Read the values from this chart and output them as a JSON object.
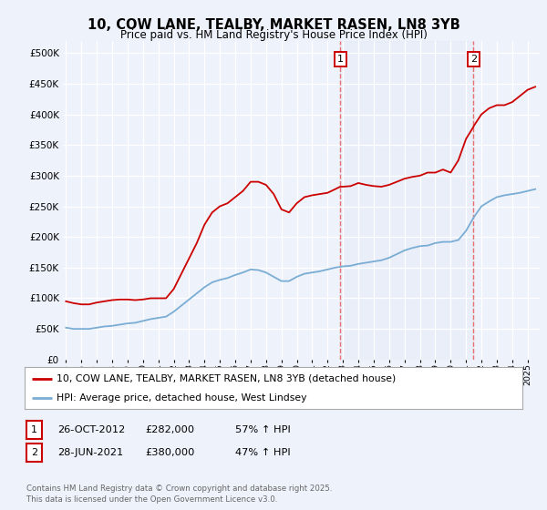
{
  "title": "10, COW LANE, TEALBY, MARKET RASEN, LN8 3YB",
  "subtitle": "Price paid vs. HM Land Registry's House Price Index (HPI)",
  "background_color": "#eef2fb",
  "plot_bg_color": "#eef2fb",
  "ylim": [
    0,
    520000
  ],
  "yticks": [
    0,
    50000,
    100000,
    150000,
    200000,
    250000,
    300000,
    350000,
    400000,
    450000,
    500000
  ],
  "red_line_color": "#cc0000",
  "blue_line_color": "#7aadd4",
  "vline_color": "#e87070",
  "marker1_x": 2012.82,
  "marker2_x": 2021.49,
  "legend_label_red": "10, COW LANE, TEALBY, MARKET RASEN, LN8 3YB (detached house)",
  "legend_label_blue": "HPI: Average price, detached house, West Lindsey",
  "transaction1_date": "26-OCT-2012",
  "transaction1_price": "£282,000",
  "transaction1_hpi": "57% ↑ HPI",
  "transaction2_date": "28-JUN-2021",
  "transaction2_price": "£380,000",
  "transaction2_hpi": "47% ↑ HPI",
  "footer": "Contains HM Land Registry data © Crown copyright and database right 2025.\nThis data is licensed under the Open Government Licence v3.0.",
  "xmin": 1994.8,
  "xmax": 2025.8,
  "red_x": [
    1995.0,
    1995.5,
    1996.0,
    1996.5,
    1997.0,
    1997.5,
    1998.0,
    1998.5,
    1999.0,
    1999.5,
    2000.0,
    2000.5,
    2001.0,
    2001.5,
    2002.0,
    2002.5,
    2003.0,
    2003.5,
    2004.0,
    2004.5,
    2005.0,
    2005.5,
    2006.0,
    2006.5,
    2007.0,
    2007.5,
    2008.0,
    2008.5,
    2009.0,
    2009.5,
    2010.0,
    2010.5,
    2011.0,
    2011.5,
    2012.0,
    2012.5,
    2012.82,
    2013.0,
    2013.5,
    2014.0,
    2014.5,
    2015.0,
    2015.5,
    2016.0,
    2016.5,
    2017.0,
    2017.5,
    2018.0,
    2018.5,
    2019.0,
    2019.5,
    2020.0,
    2020.5,
    2021.0,
    2021.49,
    2021.5,
    2022.0,
    2022.5,
    2023.0,
    2023.5,
    2024.0,
    2024.5,
    2025.0,
    2025.5
  ],
  "red_y": [
    95000,
    92000,
    90000,
    90000,
    93000,
    95000,
    97000,
    98000,
    98000,
    97000,
    98000,
    100000,
    100000,
    100000,
    115000,
    140000,
    165000,
    190000,
    220000,
    240000,
    250000,
    255000,
    265000,
    275000,
    290000,
    290000,
    285000,
    270000,
    245000,
    240000,
    255000,
    265000,
    268000,
    270000,
    272000,
    278000,
    282000,
    282000,
    283000,
    288000,
    285000,
    283000,
    282000,
    285000,
    290000,
    295000,
    298000,
    300000,
    305000,
    305000,
    310000,
    305000,
    325000,
    360000,
    380000,
    381000,
    400000,
    410000,
    415000,
    415000,
    420000,
    430000,
    440000,
    445000
  ],
  "blue_x": [
    1995.0,
    1995.5,
    1996.0,
    1996.5,
    1997.0,
    1997.5,
    1998.0,
    1998.5,
    1999.0,
    1999.5,
    2000.0,
    2000.5,
    2001.0,
    2001.5,
    2002.0,
    2002.5,
    2003.0,
    2003.5,
    2004.0,
    2004.5,
    2005.0,
    2005.5,
    2006.0,
    2006.5,
    2007.0,
    2007.5,
    2008.0,
    2008.5,
    2009.0,
    2009.5,
    2010.0,
    2010.5,
    2011.0,
    2011.5,
    2012.0,
    2012.5,
    2013.0,
    2013.5,
    2014.0,
    2014.5,
    2015.0,
    2015.5,
    2016.0,
    2016.5,
    2017.0,
    2017.5,
    2018.0,
    2018.5,
    2019.0,
    2019.5,
    2020.0,
    2020.5,
    2021.0,
    2021.5,
    2022.0,
    2022.5,
    2023.0,
    2023.5,
    2024.0,
    2024.5,
    2025.0,
    2025.5
  ],
  "blue_y": [
    52000,
    50000,
    50000,
    50000,
    52000,
    54000,
    55000,
    57000,
    59000,
    60000,
    63000,
    66000,
    68000,
    70000,
    78000,
    88000,
    98000,
    108000,
    118000,
    126000,
    130000,
    133000,
    138000,
    142000,
    147000,
    146000,
    142000,
    135000,
    128000,
    128000,
    135000,
    140000,
    142000,
    144000,
    147000,
    150000,
    152000,
    153000,
    156000,
    158000,
    160000,
    162000,
    166000,
    172000,
    178000,
    182000,
    185000,
    186000,
    190000,
    192000,
    192000,
    195000,
    210000,
    232000,
    250000,
    258000,
    265000,
    268000,
    270000,
    272000,
    275000,
    278000
  ]
}
